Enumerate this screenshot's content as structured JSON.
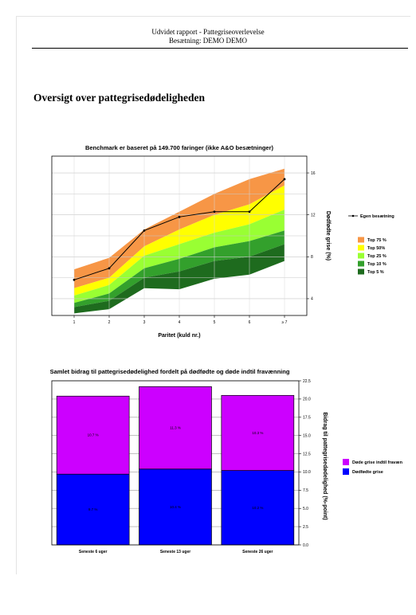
{
  "header": {
    "line1": "Udvidet rapport - Pattegriseoverlevelse",
    "line2": "Besætning: DEMO DEMO"
  },
  "section_title": "Oversigt over pattegrisedødeligheden",
  "colors": {
    "top75": "#f79646",
    "top50": "#ffff00",
    "top25": "#99ff33",
    "top10": "#33a02c",
    "top5": "#1e6b1e",
    "dead_before_weaning": "#cc00ff",
    "stillborn": "#0000ff"
  },
  "chart_data": [
    {
      "type": "area",
      "title": "Benchmark er baseret på 149.700 faringer (ikke A&O besætninger)",
      "xlabel": "Paritet (kuld nr.)",
      "ylabel": "Dødfødte grise (%)",
      "categories": [
        "1",
        "2",
        "3",
        "4",
        "5",
        "6",
        "≥ 7"
      ],
      "ylim": [
        2.4,
        17.6
      ],
      "yticks": [
        4,
        8,
        12,
        16
      ],
      "grid": true,
      "y_axis_side": "right",
      "legend_position": "right",
      "bands": [
        {
          "name": "Top 75 %",
          "color": "#f79646",
          "lower": [
            5.0,
            6.0,
            9.0,
            10.6,
            12.0,
            13.0,
            14.8
          ],
          "upper": [
            6.8,
            7.9,
            10.6,
            12.3,
            14.0,
            15.4,
            16.4
          ]
        },
        {
          "name": "Top 50%",
          "color": "#ffff00",
          "lower": [
            4.3,
            5.3,
            8.1,
            9.2,
            10.3,
            11.1,
            12.5
          ],
          "upper": [
            5.0,
            6.0,
            9.0,
            10.6,
            12.0,
            13.0,
            14.8
          ]
        },
        {
          "name": "Top 25 %",
          "color": "#99ff33",
          "lower": [
            3.6,
            4.5,
            6.9,
            7.8,
            8.9,
            9.5,
            10.5
          ],
          "upper": [
            4.3,
            5.3,
            8.1,
            9.2,
            10.3,
            11.1,
            12.5
          ]
        },
        {
          "name": "Top 10 %",
          "color": "#33a02c",
          "lower": [
            3.2,
            3.8,
            6.0,
            6.6,
            7.6,
            8.0,
            9.2
          ],
          "upper": [
            3.6,
            4.5,
            6.9,
            7.8,
            8.9,
            9.5,
            10.5
          ]
        },
        {
          "name": "Top 5 %",
          "color": "#1e6b1e",
          "lower": [
            2.6,
            3.0,
            5.0,
            4.9,
            5.9,
            6.3,
            7.6
          ],
          "upper": [
            3.2,
            3.8,
            6.0,
            6.6,
            7.6,
            8.0,
            9.2
          ]
        }
      ],
      "series": [
        {
          "name": "Egen besætning",
          "values": [
            5.8,
            6.9,
            10.5,
            11.8,
            12.3,
            12.3,
            15.4
          ]
        }
      ]
    },
    {
      "type": "bar",
      "stacked": true,
      "title": "Samlet bidrag til pattegrisedødelighed fordelt på dødfødte og døde indtil fravænning",
      "ylabel": "Bidrag til pattegrisedødelighed (%-point)",
      "categories": [
        "Seneste 6 uger",
        "Seneste 13 uger",
        "Seneste 26 uger"
      ],
      "ylim": [
        0,
        22.5
      ],
      "yticks": [
        "0.0",
        "2.5",
        "5.0",
        "7.5",
        "10.0",
        "12.5",
        "15.0",
        "17.5",
        "20.0",
        "22.5"
      ],
      "grid": true,
      "y_axis_side": "right",
      "legend_position": "right",
      "series": [
        {
          "name": "Dødfødte grise",
          "color": "#0000ff",
          "values": [
            9.7,
            10.4,
            10.2
          ],
          "labels": [
            "9.7 %",
            "10.4 %",
            "10.2 %"
          ]
        },
        {
          "name": "Døde grise indtil fravæn",
          "color": "#cc00ff",
          "values": [
            10.7,
            11.3,
            10.3
          ],
          "labels": [
            "10.7 %",
            "11.3 %",
            "10.3 %"
          ]
        }
      ]
    }
  ]
}
